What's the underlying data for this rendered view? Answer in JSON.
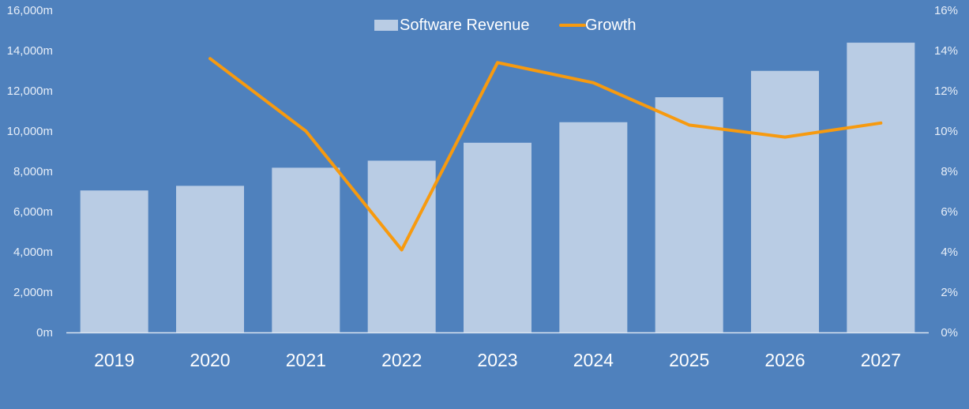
{
  "chart_data": {
    "type": "bar",
    "categories": [
      "2019",
      "2020",
      "2021",
      "2022",
      "2023",
      "2024",
      "2025",
      "2026",
      "2027"
    ],
    "series": [
      {
        "name": "Software Revenue",
        "type": "bar",
        "axis": "left",
        "values": [
          7050,
          7280,
          8180,
          8530,
          9420,
          10440,
          11680,
          12990,
          14390
        ],
        "color": "#b9cce4"
      },
      {
        "name": "Growth",
        "type": "line",
        "axis": "right",
        "values": [
          null,
          13.6,
          10.0,
          4.1,
          13.4,
          12.4,
          10.3,
          9.7,
          10.4
        ],
        "color": "#f79a0f"
      }
    ],
    "y_left": {
      "range": [
        0,
        16000
      ],
      "ticks": [
        0,
        2000,
        4000,
        6000,
        8000,
        10000,
        12000,
        14000,
        16000
      ],
      "tick_labels": [
        "0m",
        "2,000m",
        "4,000m",
        "6,000m",
        "8,000m",
        "10,000m",
        "12,000m",
        "14,000m",
        "16,000m"
      ]
    },
    "y_right": {
      "range": [
        0,
        16
      ],
      "ticks": [
        0,
        2,
        4,
        6,
        8,
        10,
        12,
        14,
        16
      ],
      "tick_labels": [
        "0%",
        "2%",
        "4%",
        "6%",
        "8%",
        "10%",
        "12%",
        "14%",
        "16%"
      ]
    },
    "grid": false,
    "legend_position": "top-center",
    "colors": {
      "background": "#4f81bd",
      "axis_line": "#d9e3f0"
    }
  }
}
